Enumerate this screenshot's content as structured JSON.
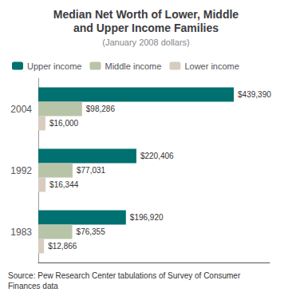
{
  "chart_data": {
    "type": "bar",
    "orientation": "horizontal",
    "title": "Median Net Worth of Lower, Middle\nand Upper Income Families",
    "subtitle": "(January 2008 dollars)",
    "annotations": [
      "Source: Pew Research Center tabulations of Survey of Consumer\nFinances data"
    ],
    "categories": [
      "2004",
      "1992",
      "1983"
    ],
    "series": [
      {
        "name": "Upper income",
        "color": "#007070",
        "values": [
          439390,
          220406,
          196920
        ],
        "value_labels": [
          "$439,390",
          "$220,406",
          "$196,920"
        ]
      },
      {
        "name": "Middle income",
        "color": "#b8c4a8",
        "values": [
          98286,
          77031,
          76355
        ],
        "value_labels": [
          "$98,286",
          "$77,031",
          "$76,355"
        ]
      },
      {
        "name": "Lower income",
        "color": "#d8ccc0",
        "values": [
          16000,
          16344,
          12866
        ],
        "value_labels": [
          "$16,000",
          "$16,344",
          "$12,866"
        ]
      }
    ],
    "xlim": [
      0,
      520000
    ],
    "data_labels": true,
    "tick_labels": "y",
    "legend": "top-left",
    "grid": false
  }
}
